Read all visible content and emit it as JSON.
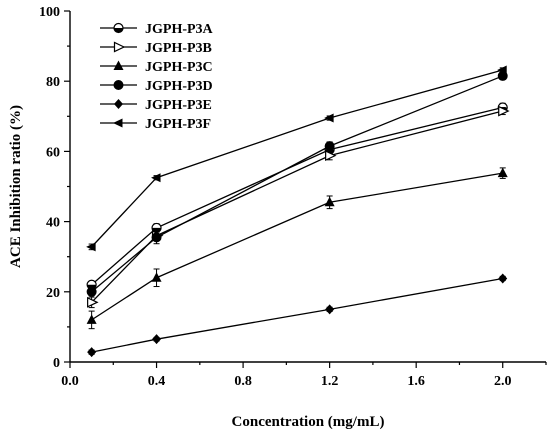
{
  "chart_data": {
    "type": "line",
    "xlabel": "Concentration (mg/mL)",
    "ylabel": "ACE Inhibition ratio (%)",
    "xlim": [
      0.0,
      2.2
    ],
    "ylim": [
      0,
      100
    ],
    "xticks": [
      "0.0",
      "0.4",
      "0.8",
      "1.2",
      "1.6",
      "2.0"
    ],
    "xtick_values": [
      0.0,
      0.4,
      0.8,
      1.2,
      1.6,
      2.0
    ],
    "yticks": [
      "0",
      "20",
      "40",
      "60",
      "80",
      "100"
    ],
    "ytick_values": [
      0,
      20,
      40,
      60,
      80,
      100
    ],
    "grid": false,
    "legend_position": "top-left",
    "x": [
      0.1,
      0.4,
      1.2,
      2.0
    ],
    "series": [
      {
        "name": "JGPH-P3A",
        "marker": "circle-half",
        "values": [
          22.0,
          38.2,
          60.5,
          72.5
        ],
        "errors": [
          1.0,
          1.2,
          1.2,
          1.2
        ]
      },
      {
        "name": "JGPH-P3B",
        "marker": "triangle-right-open",
        "values": [
          17.0,
          36.0,
          58.8,
          71.5
        ],
        "errors": [
          1.5,
          1.5,
          1.2,
          1.0
        ]
      },
      {
        "name": "JGPH-P3C",
        "marker": "triangle-up",
        "values": [
          12.0,
          24.0,
          45.5,
          53.8
        ],
        "errors": [
          2.5,
          2.5,
          1.8,
          1.5
        ]
      },
      {
        "name": "JGPH-P3D",
        "marker": "circle",
        "values": [
          20.0,
          35.5,
          61.5,
          81.5
        ],
        "errors": [
          1.0,
          1.8,
          1.2,
          1.0
        ]
      },
      {
        "name": "JGPH-P3E",
        "marker": "diamond",
        "values": [
          2.8,
          6.5,
          15.0,
          23.8
        ],
        "errors": [
          0.6,
          0.5,
          0.6,
          0.6
        ]
      },
      {
        "name": "JGPH-P3F",
        "marker": "triangle-left",
        "values": [
          32.8,
          52.5,
          69.5,
          83.2
        ],
        "errors": [
          0.8,
          0.6,
          0.6,
          0.6
        ]
      }
    ]
  }
}
